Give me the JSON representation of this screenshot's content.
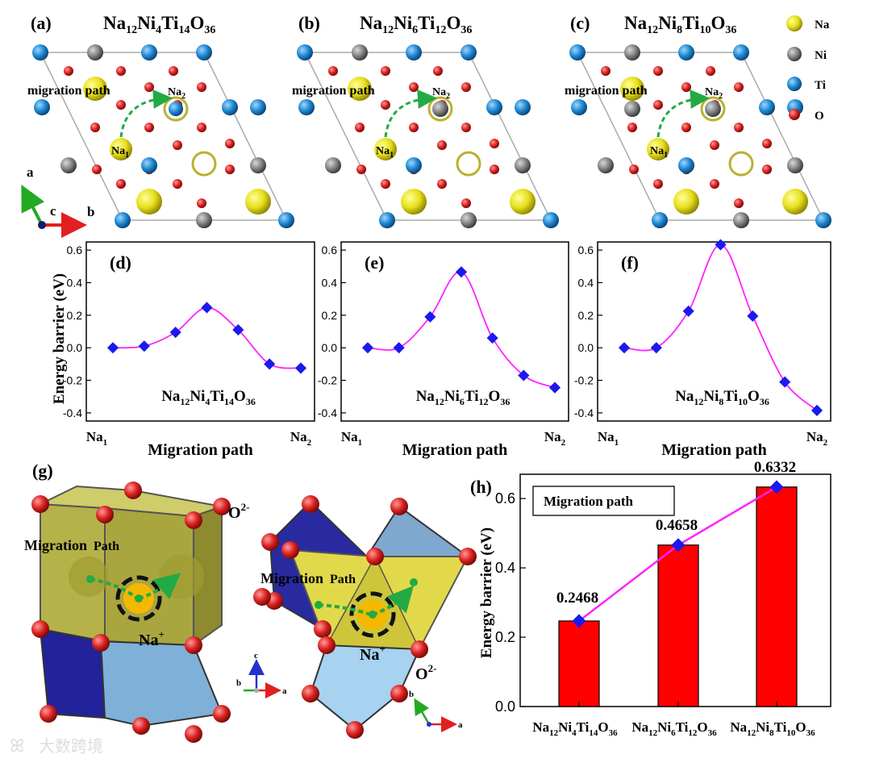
{
  "panels": {
    "a": {
      "tag": "(a)",
      "formula": [
        "Na",
        "12",
        "Ni",
        "4",
        "Ti",
        "14",
        "O",
        "36"
      ]
    },
    "b": {
      "tag": "(b)",
      "formula": [
        "Na",
        "12",
        "Ni",
        "6",
        "Ti",
        "12",
        "O",
        "36"
      ]
    },
    "c": {
      "tag": "(c)",
      "formula": [
        "Na",
        "12",
        "Ni",
        "8",
        "Ti",
        "10",
        "O",
        "36"
      ]
    }
  },
  "migration_label": "migration path",
  "site_labels": {
    "na1": [
      "Na",
      "1"
    ],
    "na2": [
      "Na",
      "2"
    ]
  },
  "legend": [
    {
      "label": "Na",
      "color": "#e6df1c"
    },
    {
      "label": "Ni",
      "color": "#8c8c8c"
    },
    {
      "label": "Ti",
      "color": "#1c86d0"
    },
    {
      "label": "O",
      "color": "#d8201e"
    }
  ],
  "axes_labels": {
    "a": "a",
    "b": "b",
    "c": "c"
  },
  "panel_g": {
    "tag": "(g)",
    "migration": [
      "Migration",
      "Path"
    ],
    "ion": [
      "Na",
      "+"
    ],
    "anion": [
      "O",
      "2-"
    ]
  },
  "axes_g": {
    "a": "a",
    "b": "b",
    "c": "c"
  },
  "colors": {
    "curve": "#ff22ff",
    "marker": "#1a1aee",
    "bar": "#ff0000",
    "arrow": "#22aa44"
  },
  "chart_data": [
    {
      "id": "d",
      "tag": "(d)",
      "type": "line",
      "title": [
        "Na",
        "12",
        "Ni",
        "4",
        "Ti",
        "14",
        "O",
        "36"
      ],
      "ylabel": "Energy barrier (eV)",
      "xlabel": "Migration path",
      "xstart": [
        "Na",
        "1"
      ],
      "xend": [
        "Na",
        "2"
      ],
      "ylim": [
        -0.45,
        0.65
      ],
      "yticks": [
        -0.4,
        -0.2,
        0.0,
        0.2,
        0.4,
        0.6
      ],
      "yticklabels": [
        "-0.4",
        "-0.2",
        "0.0",
        "0.2",
        "0.4",
        "0.6"
      ],
      "values": [
        0.0,
        0.01,
        0.095,
        0.2468,
        0.11,
        -0.1,
        -0.125
      ]
    },
    {
      "id": "e",
      "tag": "(e)",
      "type": "line",
      "title": [
        "Na",
        "12",
        "Ni",
        "6",
        "Ti",
        "12",
        "O",
        "36"
      ],
      "xlabel": "Migration path",
      "xstart": [
        "Na",
        "1"
      ],
      "xend": [
        "Na",
        "2"
      ],
      "ylim": [
        -0.45,
        0.65
      ],
      "yticks": [
        -0.4,
        -0.2,
        0.0,
        0.2,
        0.4,
        0.6
      ],
      "yticklabels": [
        "-0.4",
        "-0.2",
        "0.0",
        "0.2",
        "0.4",
        "0.6"
      ],
      "values": [
        0.0,
        0.0,
        0.19,
        0.4658,
        0.06,
        -0.17,
        -0.245
      ]
    },
    {
      "id": "f",
      "tag": "(f)",
      "type": "line",
      "title": [
        "Na",
        "12",
        "Ni",
        "8",
        "Ti",
        "10",
        "O",
        "36"
      ],
      "xlabel": "Migration path",
      "xstart": [
        "Na",
        "1"
      ],
      "xend": [
        "Na",
        "2"
      ],
      "ylim": [
        -0.45,
        0.65
      ],
      "yticks": [
        -0.4,
        -0.2,
        0.0,
        0.2,
        0.4,
        0.6
      ],
      "yticklabels": [
        "-0.4",
        "-0.2",
        "0.0",
        "0.2",
        "0.4",
        "0.6"
      ],
      "values": [
        0.0,
        0.0,
        0.225,
        0.6332,
        0.195,
        -0.21,
        -0.385
      ]
    },
    {
      "id": "h",
      "tag": "(h)",
      "type": "bar",
      "legend": "Migration path",
      "ylabel": "Energy barrier (eV)",
      "ylim": [
        0.0,
        0.67
      ],
      "yticks": [
        0.0,
        0.2,
        0.4,
        0.6
      ],
      "yticklabels": [
        "0.0",
        "0.2",
        "0.4",
        "0.6"
      ],
      "categories": [
        [
          "Na",
          "12",
          "Ni",
          "4",
          "Ti",
          "14",
          "O",
          "36"
        ],
        [
          "Na",
          "12",
          "Ni",
          "6",
          "Ti",
          "12",
          "O",
          "36"
        ],
        [
          "Na",
          "12",
          "Ni",
          "8",
          "Ti",
          "10",
          "O",
          "36"
        ]
      ],
      "values": [
        0.2468,
        0.4658,
        0.6332
      ],
      "value_labels": [
        "0.2468",
        "0.4658",
        "0.6332"
      ]
    }
  ],
  "watermark": "大数跨境"
}
